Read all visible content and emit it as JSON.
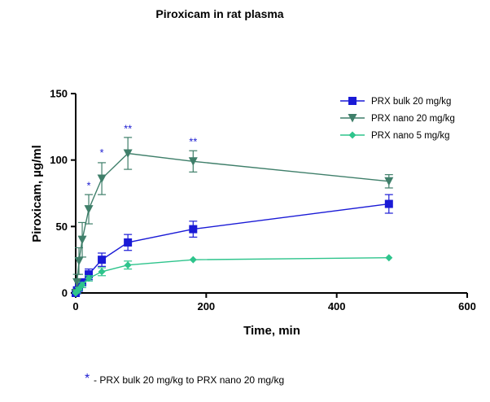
{
  "chart_data": {
    "type": "line",
    "title": "Piroxicam in rat plasma",
    "xlabel": "Time, min",
    "ylabel": "Piroxicam, µg/ml",
    "xlim": [
      0,
      600
    ],
    "ylim": [
      0,
      150
    ],
    "xticks": [
      0,
      200,
      400,
      600
    ],
    "yticks": [
      0,
      50,
      100,
      150
    ],
    "grid": false,
    "legend_position": "top-right",
    "series": [
      {
        "name": "PRX bulk 20 mg/kg",
        "color": "#1a1ad6",
        "marker": "square",
        "x": [
          0,
          2,
          5,
          10,
          20,
          40,
          80,
          180,
          480
        ],
        "y": [
          0,
          2,
          4,
          8,
          14,
          25,
          38,
          48,
          67
        ],
        "err": [
          0,
          1,
          2,
          2,
          4,
          5,
          6,
          6,
          7
        ]
      },
      {
        "name": "PRX nano 20 mg/kg",
        "color": "#3f7f6a",
        "marker": "triangle-down",
        "x": [
          0,
          2,
          5,
          10,
          20,
          40,
          80,
          180,
          480
        ],
        "y": [
          0,
          8,
          24,
          40,
          63,
          86,
          105,
          99,
          84
        ],
        "err": [
          0,
          6,
          10,
          13,
          11,
          12,
          12,
          8,
          5
        ]
      },
      {
        "name": "PRX nano 5 mg/kg",
        "color": "#2ec48c",
        "marker": "diamond",
        "x": [
          0,
          2,
          5,
          10,
          20,
          40,
          80,
          180,
          480
        ],
        "y": [
          0,
          1,
          3,
          6,
          11,
          16,
          21,
          25,
          26.5
        ],
        "err": [
          0,
          1,
          1,
          2,
          2,
          3,
          3,
          0,
          0
        ]
      }
    ],
    "annotations": [
      {
        "text": "*",
        "x": 20,
        "y": 78
      },
      {
        "text": "*",
        "x": 40,
        "y": 103
      },
      {
        "text": "**",
        "x": 80,
        "y": 121
      },
      {
        "text": "**",
        "x": 180,
        "y": 111
      }
    ]
  },
  "footnote": {
    "symbol": "*",
    "text": "- PRX bulk 20 mg/kg to PRX nano 20 mg/kg"
  }
}
